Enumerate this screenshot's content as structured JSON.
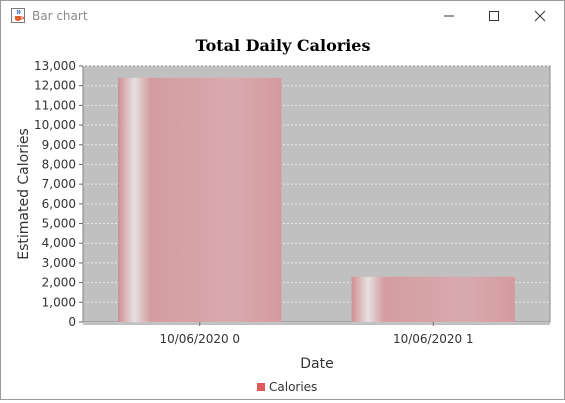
{
  "window": {
    "title": "Bar chart",
    "icon": "java-cup-icon",
    "controls": [
      "minimize-icon",
      "maximize-icon",
      "close-icon"
    ]
  },
  "colors": {
    "plot_background": "#c0c0c0",
    "bar": "#d4a0a4",
    "legend_swatch": "#e05a5a"
  },
  "chart_data": {
    "type": "bar",
    "title": "Total Daily Calories",
    "xlabel": "Date",
    "ylabel": "Estimated Calories",
    "categories": [
      "10/06/2020 0",
      "10/06/2020 1"
    ],
    "series": [
      {
        "name": "Calories",
        "values": [
          12400,
          2300
        ]
      }
    ],
    "ylim": [
      0,
      13000
    ],
    "yticks": [
      0,
      1000,
      2000,
      3000,
      4000,
      5000,
      6000,
      7000,
      8000,
      9000,
      10000,
      11000,
      12000,
      13000
    ],
    "grid": true,
    "legend": "bottom"
  }
}
